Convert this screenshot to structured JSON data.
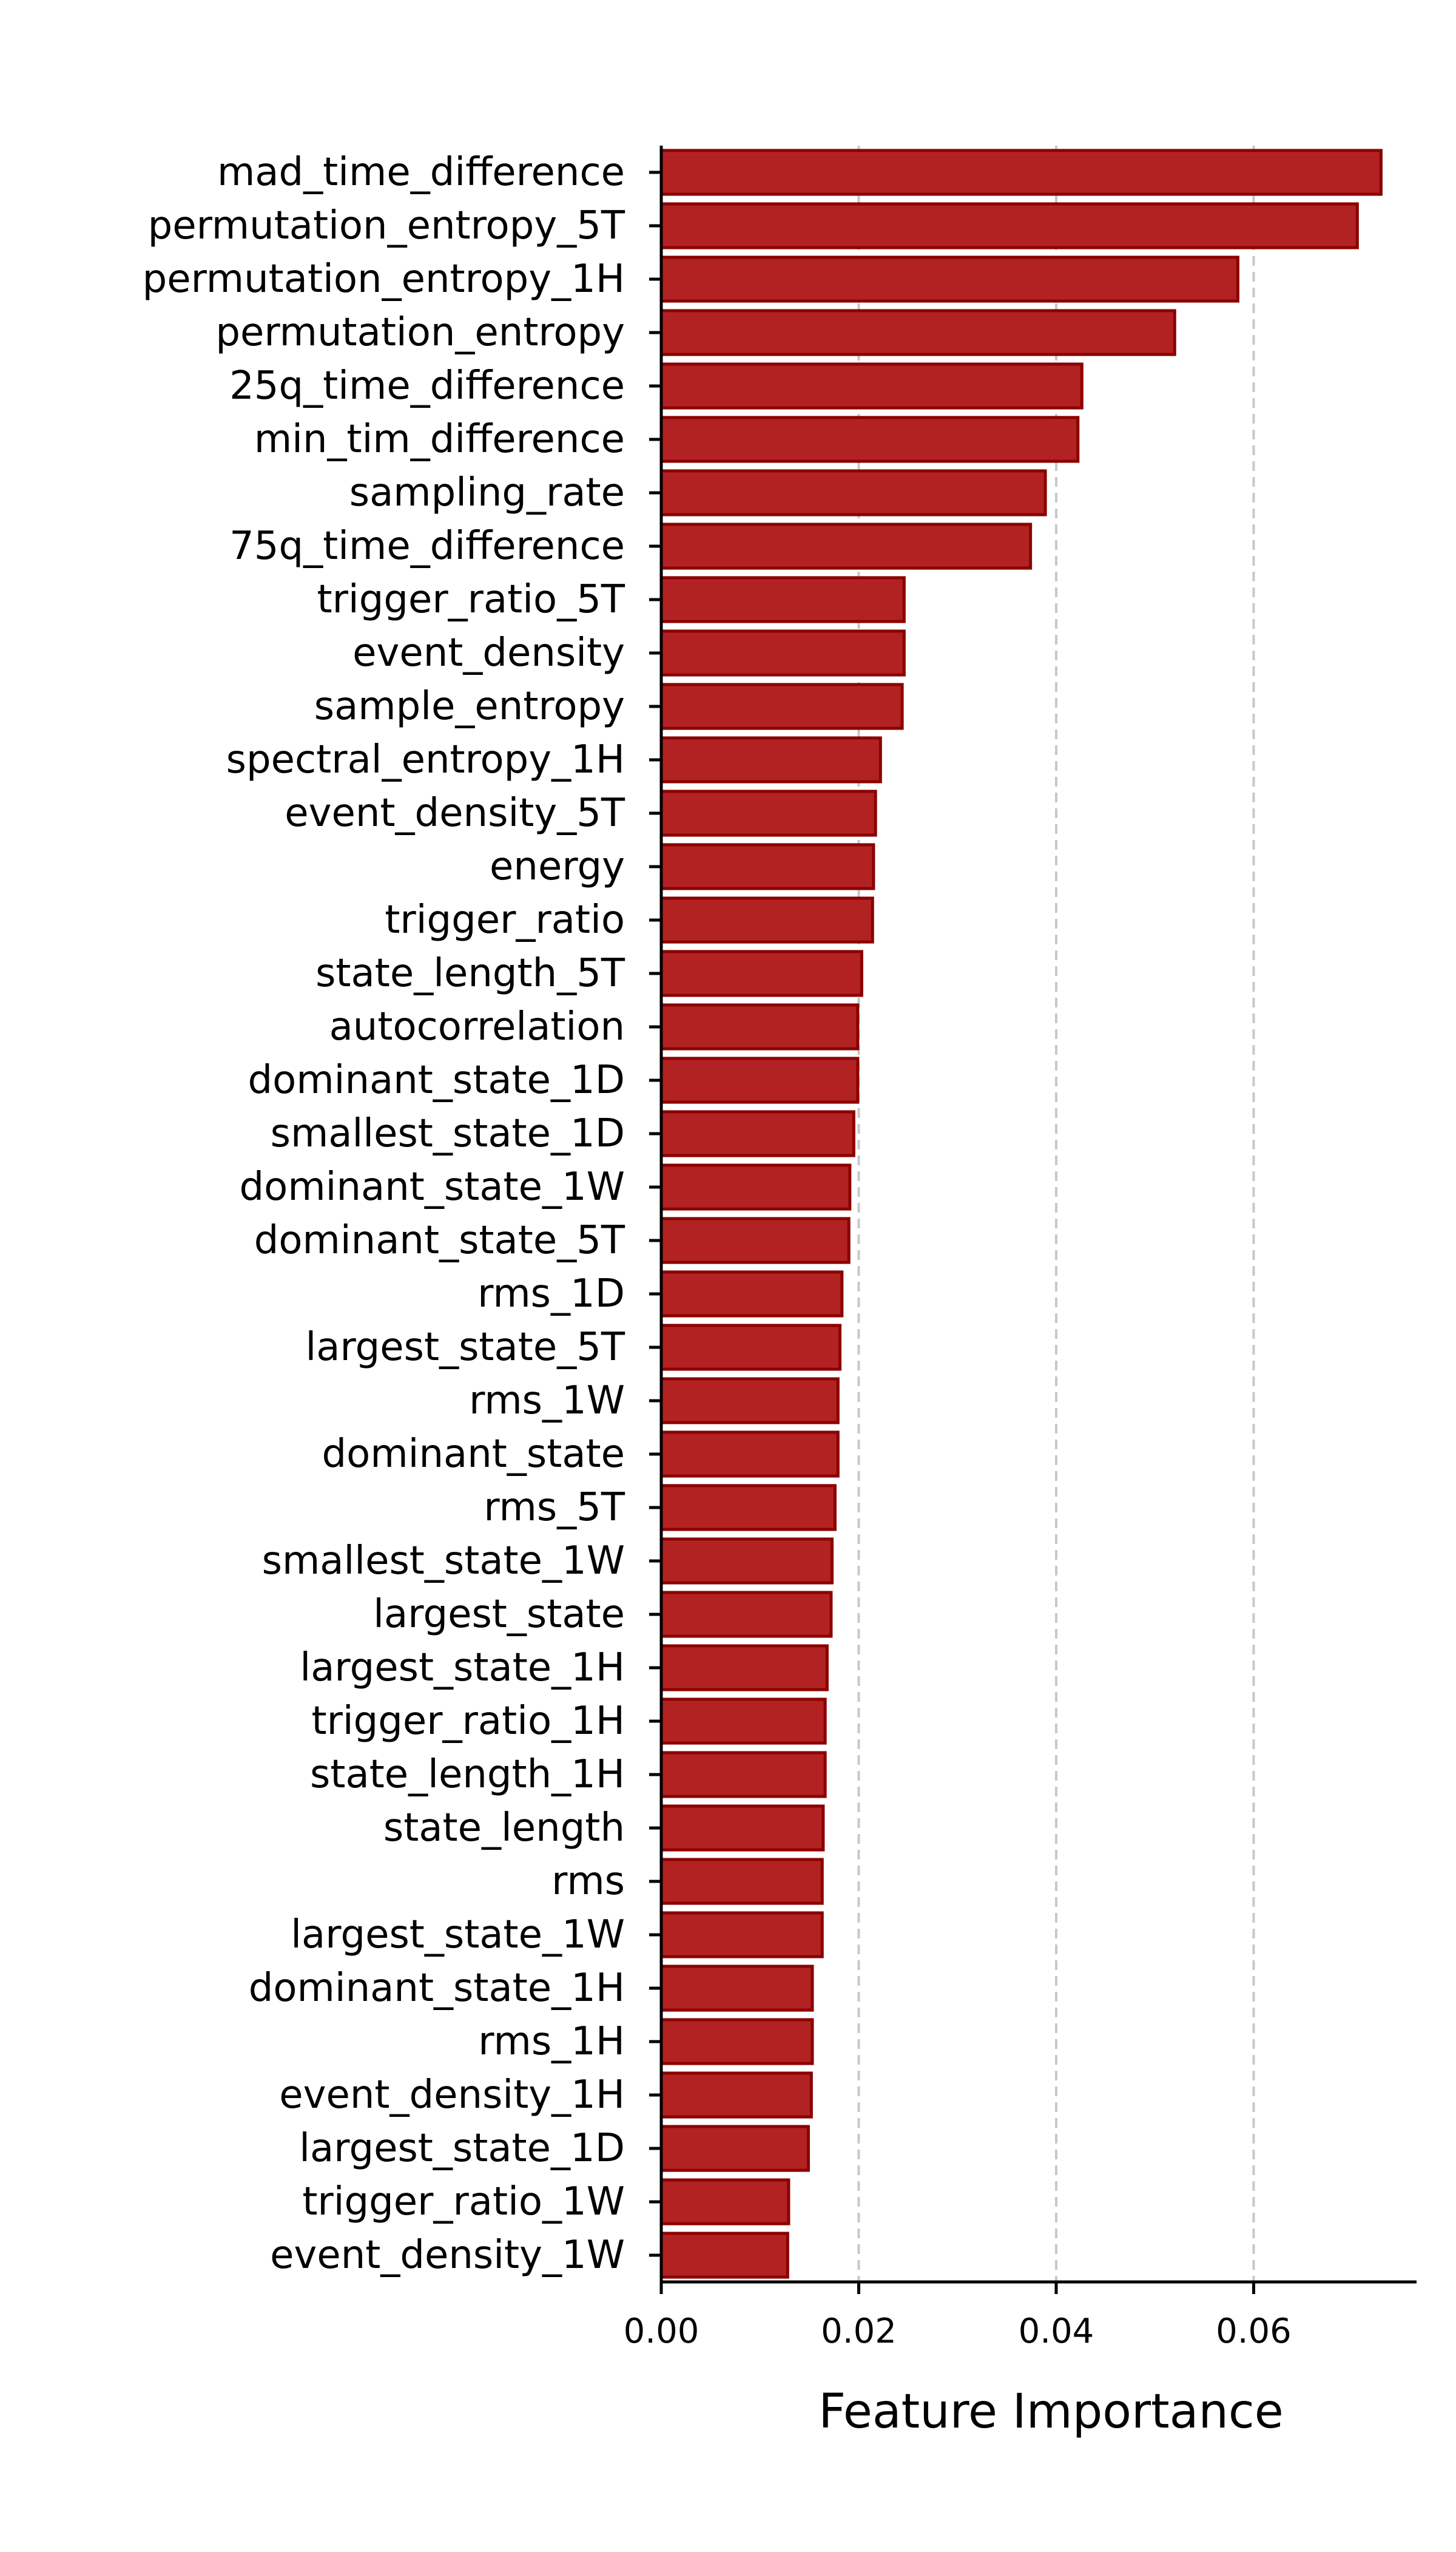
{
  "chart_data": {
    "type": "bar",
    "orientation": "horizontal",
    "xlabel": "Feature Importance",
    "ylabel": "",
    "title": "",
    "xlim": [
      0,
      0.0765
    ],
    "xticks": [
      0.0,
      0.02,
      0.04,
      0.06
    ],
    "xtick_labels": [
      "0.00",
      "0.02",
      "0.04",
      "0.06"
    ],
    "grid": "vertical dashed lines at x ticks",
    "bar_color": "#b22222",
    "bar_edge_color": "#8b0000",
    "grid_color": "#c8c8c8",
    "categories": [
      "mad_time_difference",
      "permutation_entropy_5T",
      "permutation_entropy_1H",
      "permutation_entropy",
      "25q_time_difference",
      "min_tim_difference",
      "sampling_rate",
      "75q_time_difference",
      "trigger_ratio_5T",
      "event_density",
      "sample_entropy",
      "spectral_entropy_1H",
      "event_density_5T",
      "energy",
      "trigger_ratio",
      "state_length_5T",
      "autocorrelation",
      "dominant_state_1D",
      "smallest_state_1D",
      "dominant_state_1W",
      "dominant_state_5T",
      "rms_1D",
      "largest_state_5T",
      "rms_1W",
      "dominant_state",
      "rms_5T",
      "smallest_state_1W",
      "largest_state",
      "largest_state_1H",
      "trigger_ratio_1H",
      "state_length_1H",
      "state_length",
      "rms",
      "largest_state_1W",
      "dominant_state_1H",
      "rms_1H",
      "event_density_1H",
      "largest_state_1D",
      "trigger_ratio_1W",
      "event_density_1W"
    ],
    "values": [
      0.0729,
      0.0705,
      0.0584,
      0.052,
      0.0426,
      0.0422,
      0.0389,
      0.0374,
      0.0246,
      0.0246,
      0.0244,
      0.0222,
      0.0217,
      0.0215,
      0.0214,
      0.0203,
      0.0199,
      0.0199,
      0.0195,
      0.0191,
      0.019,
      0.0183,
      0.0181,
      0.0179,
      0.0179,
      0.0176,
      0.0173,
      0.0172,
      0.0168,
      0.0166,
      0.0166,
      0.0164,
      0.0163,
      0.0163,
      0.0153,
      0.0153,
      0.0152,
      0.0149,
      0.0129,
      0.0128
    ]
  }
}
